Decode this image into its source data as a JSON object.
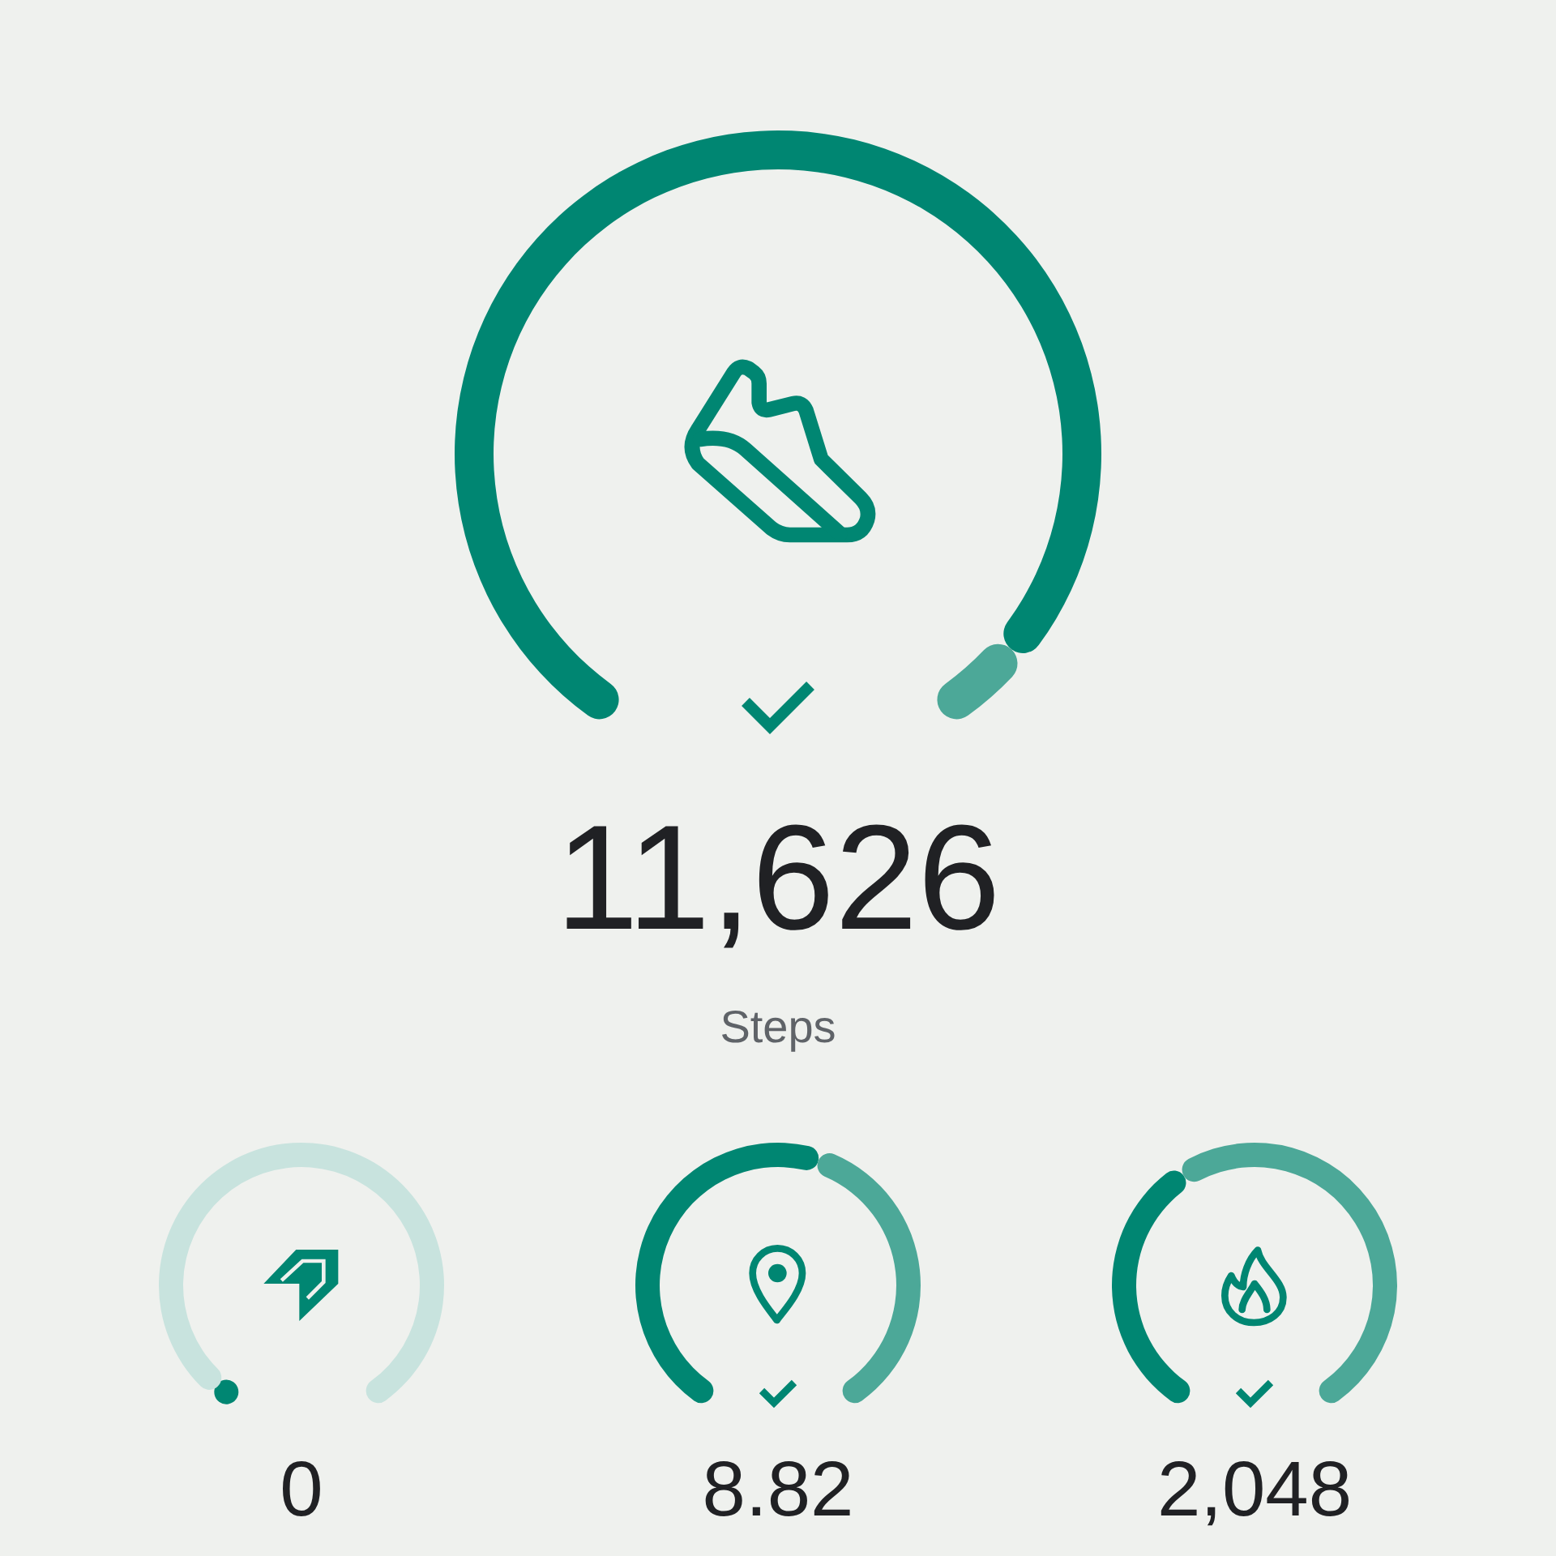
{
  "chart_data": [
    {
      "type": "donut",
      "title": "11,626",
      "subtitle": "Steps",
      "categories": [
        null,
        null
      ],
      "values": [
        94,
        6
      ],
      "colors": [
        "#008672",
        "#4ca898"
      ]
    },
    {
      "type": "donut",
      "title": "0",
      "categories": [
        null,
        null
      ],
      "values": [
        3,
        97
      ],
      "colors": [
        "#008672",
        "#c8e3de"
      ]
    },
    {
      "type": "donut",
      "title": "8.82",
      "categories": [
        null,
        null
      ],
      "values": [
        56,
        44
      ],
      "colors": [
        "#008672",
        "#4ca898"
      ]
    },
    {
      "type": "donut",
      "title": "2,048",
      "categories": [
        null,
        null
      ],
      "values": [
        39,
        61
      ],
      "colors": [
        "#008672",
        "#4ca898"
      ]
    }
  ]
}
